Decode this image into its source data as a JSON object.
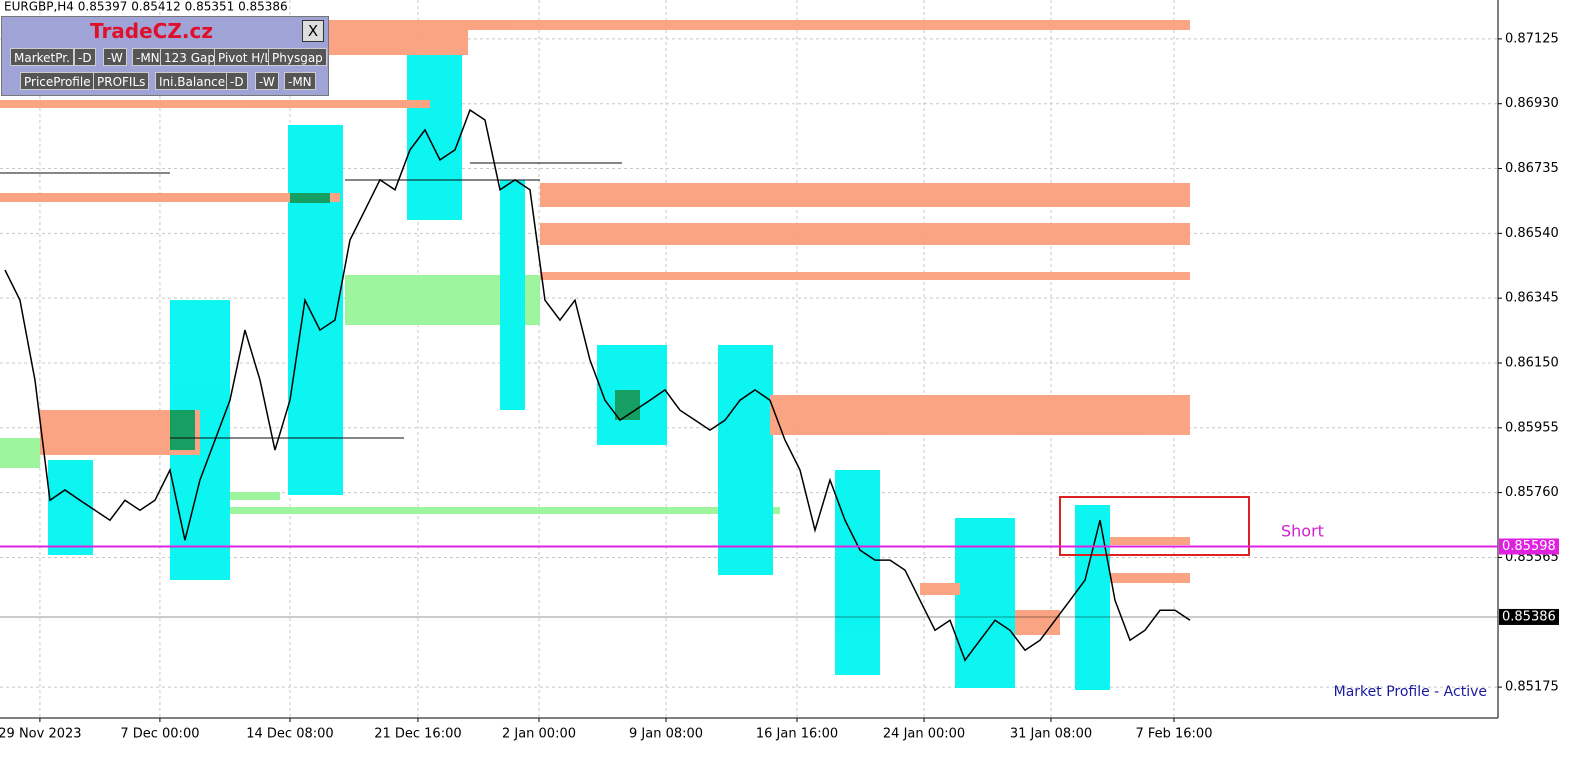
{
  "header": "EURGBP,H4  0.85397 0.85412 0.85351 0.85386",
  "panel": {
    "title": "TradeCZ.cz",
    "close": "X",
    "buttons_row1": [
      "MarketPr.",
      "-D",
      "-W",
      "-MN",
      "123 Gap",
      "Pivot H/L",
      "Physgap"
    ],
    "buttons_row2": [
      "PriceProfile",
      "PROFILs",
      "Ini.Balance",
      "-D",
      "-W",
      "-MN"
    ]
  },
  "chart_data": {
    "type": "line",
    "color": "#000000",
    "x": [
      0,
      1,
      2,
      3,
      4,
      5,
      6,
      7,
      8,
      9,
      10,
      11,
      12,
      13,
      14,
      15,
      16,
      17,
      18,
      19,
      20,
      21,
      22,
      23,
      24,
      25,
      26,
      27,
      28,
      29,
      30,
      31,
      32,
      33,
      34,
      35,
      36,
      37,
      38,
      39,
      40,
      41,
      42,
      43,
      44,
      45,
      46,
      47,
      48,
      49,
      50,
      51,
      52,
      53,
      54,
      55,
      56,
      57,
      58,
      59,
      60,
      61,
      62,
      63,
      64,
      65,
      66,
      67,
      68,
      69,
      70,
      71,
      72,
      73,
      74,
      75,
      76,
      77,
      78,
      79
    ],
    "values": [
      0.8643,
      0.86339,
      0.86099,
      0.85737,
      0.85768,
      0.85737,
      0.85707,
      0.85677,
      0.85737,
      0.85707,
      0.85737,
      0.85828,
      0.85617,
      0.85798,
      0.85918,
      0.86038,
      0.86249,
      0.86099,
      0.85888,
      0.86038,
      0.86339,
      0.86249,
      0.86279,
      0.8652,
      0.8661,
      0.86701,
      0.86671,
      0.86791,
      0.86851,
      0.86761,
      0.86791,
      0.86911,
      0.86881,
      0.86671,
      0.86701,
      0.86671,
      0.86339,
      0.86279,
      0.86339,
      0.86159,
      0.86038,
      0.85978,
      0.86008,
      0.86038,
      0.86069,
      0.86008,
      0.85978,
      0.85948,
      0.85978,
      0.86038,
      0.86069,
      0.86038,
      0.85918,
      0.85828,
      0.85647,
      0.85798,
      0.85677,
      0.85587,
      0.85557,
      0.85557,
      0.85527,
      0.85436,
      0.85346,
      0.85376,
      0.85256,
      0.85316,
      0.85376,
      0.85346,
      0.85286,
      0.85316,
      0.85376,
      0.85436,
      0.85497,
      0.85677,
      0.85436,
      0.85316,
      0.85346,
      0.85406,
      0.85406,
      0.85376
    ],
    "xlim": [
      -0.33,
      99.53
    ],
    "xticks": [
      {
        "value": 2.33,
        "label": "29 Nov 2023"
      },
      {
        "value": 10.33,
        "label": "7 Dec 00:00"
      },
      {
        "value": 19,
        "label": "14 Dec 08:00"
      },
      {
        "value": 27.53,
        "label": "21 Dec 16:00"
      },
      {
        "value": 35.6,
        "label": "2 Jan 00:00"
      },
      {
        "value": 44.07,
        "label": "9 Jan 08:00"
      },
      {
        "value": 52.8,
        "label": "16 Jan 16:00"
      },
      {
        "value": 61.27,
        "label": "24 Jan 00:00"
      },
      {
        "value": 69.73,
        "label": "31 Jan 08:00"
      },
      {
        "value": 77.93,
        "label": "7 Feb 16:00"
      }
    ],
    "ylim": [
      0.85082,
      0.87242
    ],
    "yticks": [
      {
        "value": 0.87125,
        "label": "0.87125"
      },
      {
        "value": 0.8693,
        "label": "0.86930"
      },
      {
        "value": 0.86735,
        "label": "0.86735"
      },
      {
        "value": 0.8654,
        "label": "0.86540"
      },
      {
        "value": 0.86345,
        "label": "0.86345"
      },
      {
        "value": 0.8615,
        "label": "0.86150"
      },
      {
        "value": 0.85955,
        "label": "0.85955"
      },
      {
        "value": 0.8576,
        "label": "0.85760"
      },
      {
        "value": 0.85565,
        "label": "0.85565"
      },
      {
        "value": 0.85175,
        "label": "0.85175"
      }
    ],
    "grid": true,
    "levels": [
      {
        "value": 0.85598,
        "label": "0.85598",
        "color": "#e020e0"
      },
      {
        "value": 0.85386,
        "label": "0.85386",
        "color": "#000000"
      }
    ],
    "annotations": [
      "Short",
      "Market Profile - Active"
    ]
  }
}
